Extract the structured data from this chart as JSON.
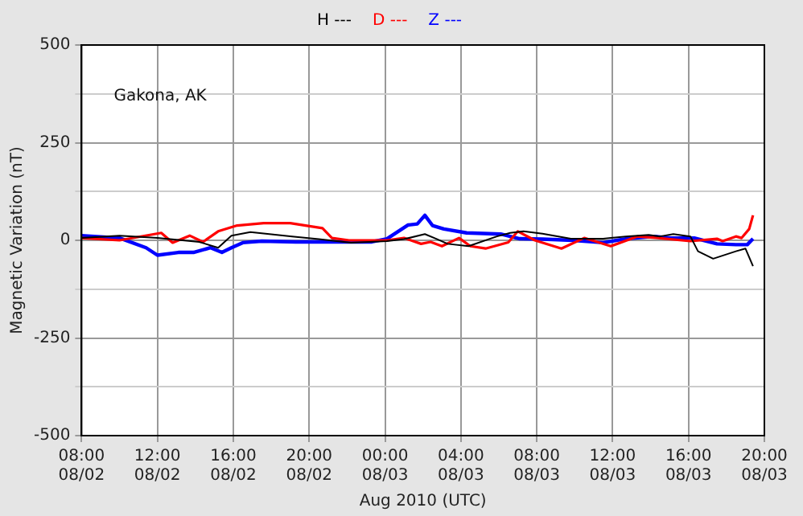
{
  "chart_data": {
    "type": "line",
    "xlabel": "Aug 2010 (UTC)",
    "ylabel": "Magnetic Variation (nT)",
    "annotations": [
      "Gakona, AK"
    ],
    "xlim": [
      "2010-08-02T08:00",
      "2010-08-03T20:00"
    ],
    "xticks": [
      {
        "value": "2010-08-02T08:00",
        "label": "08:00\n08/02"
      },
      {
        "value": "2010-08-02T12:00",
        "label": "12:00\n08/02"
      },
      {
        "value": "2010-08-02T16:00",
        "label": "16:00\n08/02"
      },
      {
        "value": "2010-08-02T20:00",
        "label": "20:00\n08/02"
      },
      {
        "value": "2010-08-03T00:00",
        "label": "00:00\n08/03"
      },
      {
        "value": "2010-08-03T04:00",
        "label": "04:00\n08/03"
      },
      {
        "value": "2010-08-03T08:00",
        "label": "08:00\n08/03"
      },
      {
        "value": "2010-08-03T12:00",
        "label": "12:00\n08/03"
      },
      {
        "value": "2010-08-03T16:00",
        "label": "16:00\n08/03"
      },
      {
        "value": "2010-08-03T20:00",
        "label": "20:00\n08/03"
      }
    ],
    "ylim": [
      -500,
      500
    ],
    "yticks": [
      -500,
      {
        "value": -375,
        "label": null
      },
      -250,
      {
        "value": -125,
        "label": null
      },
      0,
      {
        "value": 125,
        "label": null
      },
      250,
      {
        "value": 375,
        "label": null
      },
      500
    ],
    "grid": true,
    "legend": "top",
    "marker": "none",
    "line_style": "solid",
    "series": [
      {
        "name": "H ---",
        "color": "#000000",
        "x": [
          "2010-08-02T08:00",
          "2010-08-02T10:00",
          "2010-08-02T12:00",
          "2010-08-02T14:12",
          "2010-08-02T15:12",
          "2010-08-02T15:54",
          "2010-08-02T16:54",
          "2010-08-02T17:54",
          "2010-08-02T19:06",
          "2010-08-02T20:30",
          "2010-08-02T22:12",
          "2010-08-03T00:06",
          "2010-08-03T01:00",
          "2010-08-03T02:06",
          "2010-08-03T02:42",
          "2010-08-03T03:18",
          "2010-08-03T04:24",
          "2010-08-03T05:54",
          "2010-08-03T06:36",
          "2010-08-03T07:18",
          "2010-08-03T08:18",
          "2010-08-03T09:48",
          "2010-08-03T11:30",
          "2010-08-03T12:42",
          "2010-08-03T13:54",
          "2010-08-03T14:30",
          "2010-08-03T15:12",
          "2010-08-03T16:06",
          "2010-08-03T16:30",
          "2010-08-03T17:18",
          "2010-08-03T18:30",
          "2010-08-03T19:00",
          "2010-08-03T19:24"
        ],
        "values": [
          6,
          12,
          6,
          -4,
          -19,
          12,
          21,
          16,
          10,
          3,
          -6,
          -2,
          3,
          16,
          4,
          -9,
          -15,
          10,
          19,
          23,
          17,
          4,
          4,
          10,
          14,
          10,
          16,
          10,
          -28,
          -47,
          -28,
          -21,
          -66
        ]
      },
      {
        "name": "D ---",
        "color": "#ff0000",
        "x": [
          "2010-08-02T08:00",
          "2010-08-02T10:00",
          "2010-08-02T12:12",
          "2010-08-02T12:48",
          "2010-08-02T13:42",
          "2010-08-02T14:24",
          "2010-08-02T15:12",
          "2010-08-02T16:12",
          "2010-08-02T17:36",
          "2010-08-02T19:00",
          "2010-08-02T20:42",
          "2010-08-02T21:12",
          "2010-08-02T22:06",
          "2010-08-02T23:06",
          "2010-08-03T00:06",
          "2010-08-03T01:00",
          "2010-08-03T01:54",
          "2010-08-03T02:24",
          "2010-08-03T03:00",
          "2010-08-03T03:54",
          "2010-08-03T04:30",
          "2010-08-03T05:18",
          "2010-08-03T06:30",
          "2010-08-03T07:00",
          "2010-08-03T07:54",
          "2010-08-03T09:18",
          "2010-08-03T10:30",
          "2010-08-03T11:54",
          "2010-08-03T13:18",
          "2010-08-03T14:24",
          "2010-08-03T16:06",
          "2010-08-03T17:30",
          "2010-08-03T17:48",
          "2010-08-03T18:30",
          "2010-08-03T18:48",
          "2010-08-03T19:12",
          "2010-08-03T19:24"
        ],
        "values": [
          6,
          0,
          19,
          -6,
          12,
          -4,
          23,
          38,
          44,
          44,
          31,
          6,
          0,
          0,
          0,
          6,
          -9,
          -4,
          -15,
          6,
          -15,
          -21,
          -5,
          23,
          0,
          -21,
          6,
          -15,
          10,
          6,
          -2,
          4,
          -2,
          10,
          6,
          29,
          64
        ]
      },
      {
        "name": "Z ---",
        "color": "#0000ff",
        "x": [
          "2010-08-02T08:00",
          "2010-08-02T10:00",
          "2010-08-02T11:24",
          "2010-08-02T12:00",
          "2010-08-02T13:06",
          "2010-08-02T13:54",
          "2010-08-02T14:48",
          "2010-08-02T15:24",
          "2010-08-02T15:54",
          "2010-08-02T16:30",
          "2010-08-02T17:30",
          "2010-08-02T19:18",
          "2010-08-02T21:30",
          "2010-08-02T23:18",
          "2010-08-03T00:06",
          "2010-08-03T01:12",
          "2010-08-03T01:42",
          "2010-08-03T02:06",
          "2010-08-03T02:30",
          "2010-08-03T03:06",
          "2010-08-03T04:18",
          "2010-08-03T06:06",
          "2010-08-03T07:06",
          "2010-08-03T08:18",
          "2010-08-03T09:54",
          "2010-08-03T11:30",
          "2010-08-03T12:42",
          "2010-08-03T14:12",
          "2010-08-03T15:06",
          "2010-08-03T16:18",
          "2010-08-03T17:30",
          "2010-08-03T18:30",
          "2010-08-03T19:06",
          "2010-08-03T19:24"
        ],
        "values": [
          12,
          6,
          -19,
          -38,
          -31,
          -31,
          -19,
          -31,
          -19,
          -6,
          -2,
          -4,
          -4,
          -4,
          4,
          39,
          42,
          64,
          38,
          29,
          19,
          16,
          4,
          3,
          0,
          -6,
          4,
          10,
          6,
          6,
          -9,
          -11,
          -11,
          4
        ]
      }
    ]
  }
}
